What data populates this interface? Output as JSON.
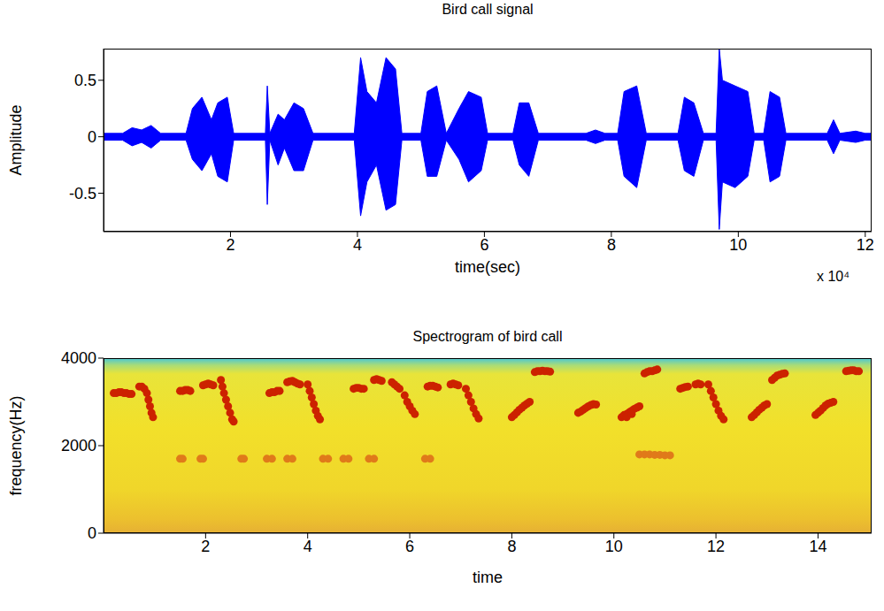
{
  "chart_data": [
    {
      "type": "area",
      "title": "Bird call signal",
      "xlabel": "time(sec)",
      "ylabel": "Amplitude",
      "x_offset_label": "x 10⁴",
      "color": "#0000ff",
      "grid": false,
      "xlim": [
        0,
        12.1
      ],
      "xticks": [
        2,
        4,
        6,
        8,
        10,
        12
      ],
      "ylim": [
        -0.84,
        0.78
      ],
      "yticks": [
        -0.5,
        0,
        0.5
      ],
      "x": [
        0.0,
        0.3,
        0.45,
        0.6,
        0.75,
        0.9,
        1.3,
        1.4,
        1.55,
        1.7,
        1.8,
        1.95,
        2.05,
        2.55,
        2.58,
        2.62,
        2.75,
        2.85,
        3.0,
        3.15,
        3.3,
        3.95,
        4.05,
        4.15,
        4.3,
        4.45,
        4.6,
        4.7,
        5.0,
        5.1,
        5.25,
        5.4,
        5.6,
        5.75,
        5.95,
        6.05,
        6.45,
        6.55,
        6.7,
        6.85,
        7.6,
        7.75,
        7.9,
        8.1,
        8.2,
        8.4,
        8.55,
        9.05,
        9.15,
        9.3,
        9.45,
        9.65,
        9.7,
        9.75,
        9.95,
        10.15,
        10.25,
        10.4,
        10.5,
        10.65,
        10.75,
        11.4,
        11.5,
        11.6,
        11.85,
        12.0,
        12.1
      ],
      "lower": [
        -0.03,
        -0.03,
        -0.08,
        -0.05,
        -0.1,
        -0.03,
        -0.03,
        -0.2,
        -0.3,
        -0.15,
        -0.35,
        -0.4,
        -0.03,
        -0.03,
        -0.6,
        -0.03,
        -0.25,
        -0.1,
        -0.3,
        -0.3,
        -0.03,
        -0.03,
        -0.7,
        -0.4,
        -0.25,
        -0.65,
        -0.6,
        -0.03,
        -0.03,
        -0.35,
        -0.35,
        -0.03,
        -0.2,
        -0.4,
        -0.3,
        -0.03,
        -0.03,
        -0.25,
        -0.35,
        -0.03,
        -0.03,
        -0.06,
        -0.03,
        -0.03,
        -0.35,
        -0.45,
        -0.03,
        -0.03,
        -0.3,
        -0.35,
        -0.03,
        -0.03,
        -0.82,
        -0.4,
        -0.45,
        -0.35,
        -0.03,
        -0.03,
        -0.4,
        -0.35,
        -0.03,
        -0.03,
        -0.15,
        -0.03,
        -0.05,
        -0.03,
        -0.03
      ],
      "upper": [
        0.03,
        0.03,
        0.08,
        0.06,
        0.1,
        0.03,
        0.03,
        0.25,
        0.35,
        0.15,
        0.3,
        0.35,
        0.03,
        0.03,
        0.45,
        0.03,
        0.2,
        0.15,
        0.3,
        0.25,
        0.03,
        0.03,
        0.7,
        0.4,
        0.3,
        0.7,
        0.6,
        0.03,
        0.03,
        0.4,
        0.45,
        0.03,
        0.25,
        0.4,
        0.35,
        0.03,
        0.03,
        0.3,
        0.3,
        0.03,
        0.03,
        0.06,
        0.03,
        0.03,
        0.4,
        0.45,
        0.03,
        0.03,
        0.35,
        0.3,
        0.03,
        0.03,
        0.78,
        0.5,
        0.45,
        0.4,
        0.03,
        0.03,
        0.4,
        0.35,
        0.03,
        0.03,
        0.15,
        0.03,
        0.05,
        0.03,
        0.03
      ]
    },
    {
      "type": "scatter",
      "title": "Spectrogram of bird call",
      "xlabel": "time",
      "ylabel": "frequency(Hz)",
      "grid": false,
      "xlim": [
        0,
        15.05
      ],
      "xticks": [
        2,
        4,
        6,
        8,
        10,
        12,
        14
      ],
      "ylim": [
        0,
        4000
      ],
      "yticks": [
        0,
        2000,
        4000
      ],
      "series": [
        {
          "color": "#cc2200",
          "x": [
            0.2,
            0.25,
            0.3,
            0.35,
            0.4,
            0.45,
            0.5,
            0.55,
            0.7,
            0.75,
            0.8,
            0.85,
            0.88,
            0.91,
            0.94,
            0.97,
            1.5,
            1.55,
            1.6,
            1.65,
            1.7,
            1.95,
            2.0,
            2.05,
            2.1,
            2.15,
            2.3,
            2.33,
            2.36,
            2.4,
            2.44,
            2.48,
            2.52,
            2.55,
            3.25,
            3.3,
            3.35,
            3.4,
            3.45,
            3.6,
            3.65,
            3.7,
            3.75,
            3.8,
            3.85,
            4.0,
            4.04,
            4.08,
            4.12,
            4.16,
            4.2,
            4.24,
            4.9,
            4.95,
            5.0,
            5.05,
            5.1,
            5.3,
            5.35,
            5.4,
            5.45,
            5.65,
            5.7,
            5.75,
            5.8,
            5.9,
            5.95,
            6.0,
            6.05,
            6.1,
            6.35,
            6.4,
            6.45,
            6.5,
            6.55,
            6.8,
            6.85,
            6.9,
            6.95,
            7.1,
            7.15,
            7.2,
            7.25,
            7.3,
            7.35,
            8.0,
            8.05,
            8.1,
            8.15,
            8.2,
            8.25,
            8.3,
            8.35,
            8.45,
            8.5,
            8.55,
            8.6,
            8.65,
            8.7,
            8.75,
            9.3,
            9.35,
            9.4,
            9.45,
            9.5,
            9.55,
            9.6,
            9.65,
            10.15,
            10.2,
            10.25,
            10.3,
            10.35,
            10.4,
            10.45,
            10.5,
            10.25,
            10.35,
            10.6,
            10.65,
            10.7,
            10.75,
            10.8,
            10.85,
            11.3,
            11.35,
            11.4,
            11.45,
            11.6,
            11.65,
            11.7,
            11.85,
            11.9,
            11.95,
            12.0,
            12.05,
            12.1,
            12.15,
            12.7,
            12.75,
            12.8,
            12.85,
            12.9,
            12.95,
            13.0,
            13.1,
            13.15,
            13.2,
            13.25,
            13.3,
            13.35,
            13.95,
            14.0,
            14.05,
            14.1,
            14.15,
            14.2,
            14.25,
            14.3,
            14.55,
            14.6,
            14.65,
            14.7,
            14.75,
            14.8
          ],
          "values": [
            3200,
            3200,
            3220,
            3220,
            3200,
            3200,
            3180,
            3180,
            3350,
            3350,
            3300,
            3200,
            3050,
            2900,
            2750,
            2650,
            3250,
            3250,
            3270,
            3270,
            3250,
            3380,
            3400,
            3420,
            3400,
            3380,
            3500,
            3350,
            3200,
            3050,
            2900,
            2750,
            2600,
            2550,
            3200,
            3220,
            3220,
            3250,
            3250,
            3450,
            3470,
            3480,
            3450,
            3420,
            3400,
            3400,
            3250,
            3100,
            2950,
            2800,
            2680,
            2600,
            3300,
            3320,
            3320,
            3300,
            3300,
            3500,
            3520,
            3500,
            3480,
            3450,
            3400,
            3350,
            3300,
            3150,
            3000,
            2900,
            2800,
            2720,
            3350,
            3370,
            3370,
            3350,
            3330,
            3400,
            3420,
            3400,
            3380,
            3300,
            3150,
            3000,
            2850,
            2720,
            2620,
            2650,
            2700,
            2760,
            2820,
            2870,
            2920,
            2960,
            3000,
            3680,
            3700,
            3700,
            3710,
            3700,
            3700,
            3690,
            2750,
            2780,
            2820,
            2860,
            2900,
            2930,
            2950,
            2940,
            2650,
            2700,
            2720,
            2760,
            2800,
            2840,
            2870,
            2900,
            2650,
            2720,
            3650,
            3680,
            3700,
            3700,
            3720,
            3740,
            3300,
            3320,
            3340,
            3350,
            3400,
            3420,
            3400,
            3400,
            3250,
            3100,
            2950,
            2800,
            2680,
            2600,
            2650,
            2700,
            2760,
            2820,
            2870,
            2920,
            2950,
            3500,
            3550,
            3600,
            3620,
            3640,
            3650,
            2700,
            2750,
            2800,
            2860,
            2920,
            2960,
            2980,
            3000,
            3700,
            3710,
            3720,
            3720,
            3700,
            3700
          ]
        },
        {
          "color": "#e07a1a",
          "x": [
            1.5,
            1.55,
            1.9,
            1.95,
            2.7,
            2.75,
            3.2,
            3.3,
            3.6,
            3.7,
            4.3,
            4.4,
            4.7,
            4.8,
            5.2,
            5.3,
            6.3,
            6.4,
            10.5,
            10.6,
            10.7,
            10.8,
            10.9,
            11.0,
            11.1
          ],
          "values": [
            1700,
            1700,
            1700,
            1700,
            1700,
            1700,
            1700,
            1700,
            1700,
            1700,
            1700,
            1700,
            1700,
            1700,
            1700,
            1700,
            1700,
            1700,
            1800,
            1800,
            1800,
            1790,
            1790,
            1780,
            1780
          ]
        }
      ]
    }
  ]
}
